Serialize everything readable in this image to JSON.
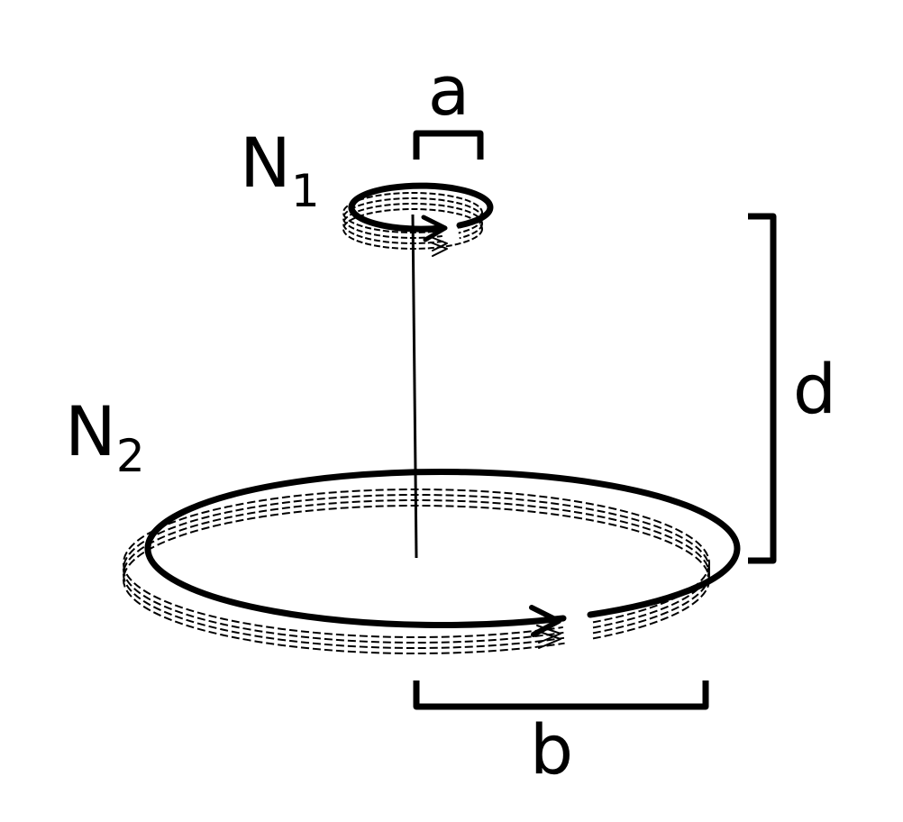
{
  "diagram": {
    "colors": {
      "ink": "#000000",
      "background": "#ffffff"
    },
    "coil1": {
      "label": "N",
      "subscript": "1"
    },
    "coil2": {
      "label": "N",
      "subscript": "2"
    },
    "dimensions": {
      "a": "a",
      "b": "b",
      "d": "d"
    }
  }
}
